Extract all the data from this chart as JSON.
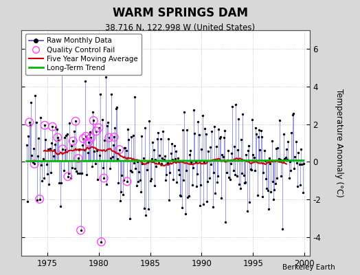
{
  "title": "WARM SPRINGS DAM",
  "subtitle": "38.716 N, 122.998 W (United States)",
  "ylabel": "Temperature Anomaly (°C)",
  "xlabel_credit": "Berkeley Earth",
  "ylim": [
    -5.0,
    7.0
  ],
  "xlim": [
    1972.5,
    2000.5
  ],
  "yticks": [
    -4,
    -2,
    0,
    2,
    4,
    6
  ],
  "xticks": [
    1975,
    1980,
    1985,
    1990,
    1995,
    2000
  ],
  "outer_bg": "#d8d8d8",
  "plot_bg": "#ffffff",
  "line_color": "#4444cc",
  "dot_color": "#000000",
  "qc_fail_color": "#ff44ff",
  "moving_avg_color": "#cc0000",
  "trend_color": "#00bb00",
  "trend_value": 0.18,
  "seed": 17
}
